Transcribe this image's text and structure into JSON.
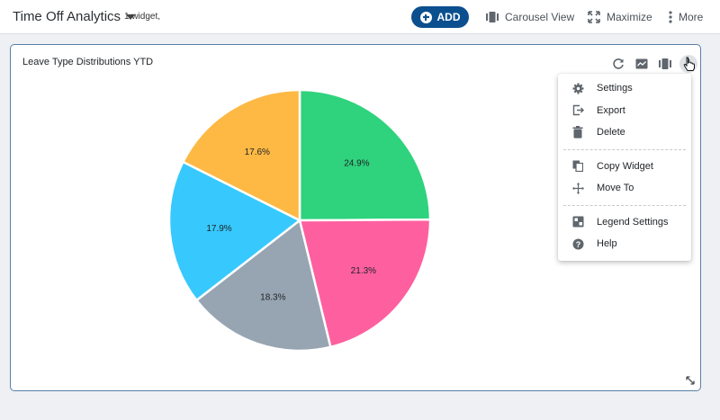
{
  "dashboard": {
    "title": "Time Off Analytics",
    "widget_count": "1 widget,"
  },
  "toolbar": {
    "add_label": "ADD",
    "carousel_label": "Carousel View",
    "maximize_label": "Maximize",
    "more_label": "More"
  },
  "widget": {
    "title": "Leave Type Distributions YTD"
  },
  "menu": {
    "group1": [
      {
        "label": "Settings",
        "icon": "gear-icon"
      },
      {
        "label": "Export",
        "icon": "export-icon"
      },
      {
        "label": "Delete",
        "icon": "trash-icon"
      }
    ],
    "group2": [
      {
        "label": "Copy Widget",
        "icon": "copy-icon"
      },
      {
        "label": "Move To",
        "icon": "move-icon"
      }
    ],
    "group3": [
      {
        "label": "Legend Settings",
        "icon": "legend-icon"
      },
      {
        "label": "Help",
        "icon": "help-icon"
      }
    ]
  },
  "colors": {
    "accent": "#0b4f8f",
    "widget_border": "#5b7fa8"
  },
  "chart_data": {
    "type": "pie",
    "title": "",
    "slices": [
      {
        "label": "24.9%",
        "value": 24.9,
        "color": "#2fd27d"
      },
      {
        "label": "21.3%",
        "value": 21.3,
        "color": "#fe609f"
      },
      {
        "label": "18.3%",
        "value": 18.3,
        "color": "#97a4b2"
      },
      {
        "label": "17.9%",
        "value": 17.9,
        "color": "#37c9fd"
      },
      {
        "label": "17.6%",
        "value": 17.6,
        "color": "#fdb944"
      }
    ],
    "legend": "none"
  }
}
